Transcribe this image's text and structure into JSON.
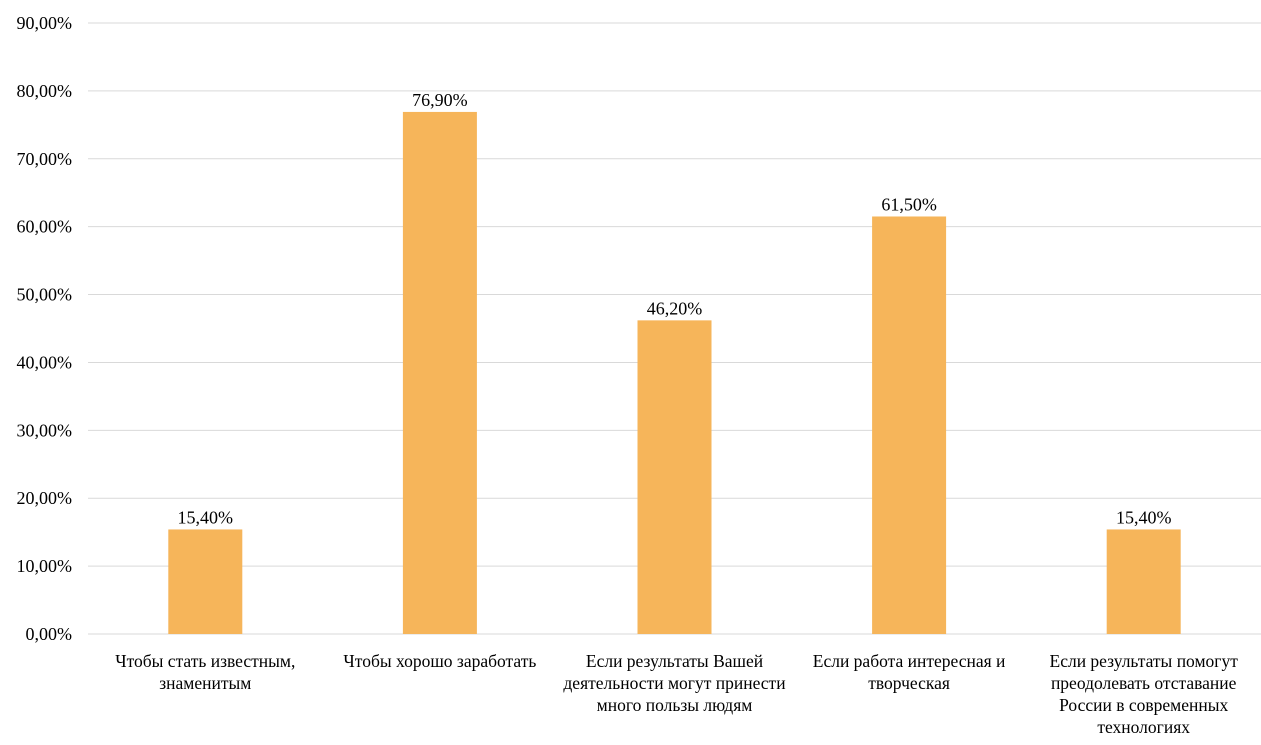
{
  "chart_data": {
    "type": "bar",
    "categories": [
      "Чтобы стать известным, знаменитым",
      "Чтобы хорошо заработать",
      "Если результаты  Вашей деятельности могут принести много пользы людям",
      "Если работа интересная и творческая",
      "Если результаты  помогут преодолевать отставание России в современных технологиях"
    ],
    "values": [
      15.4,
      76.9,
      46.2,
      61.5,
      15.4
    ],
    "value_labels": [
      "15,40%",
      "76,90%",
      "46,20%",
      "61,50%",
      "15,40%"
    ],
    "y_ticks": [
      "0,00%",
      "10,00%",
      "20,00%",
      "30,00%",
      "40,00%",
      "50,00%",
      "60,00%",
      "70,00%",
      "80,00%",
      "90,00%"
    ],
    "ylim": [
      0,
      90
    ],
    "grid": true,
    "bar_color": "#F6B55A",
    "grid_color": "#D9D9D9"
  }
}
